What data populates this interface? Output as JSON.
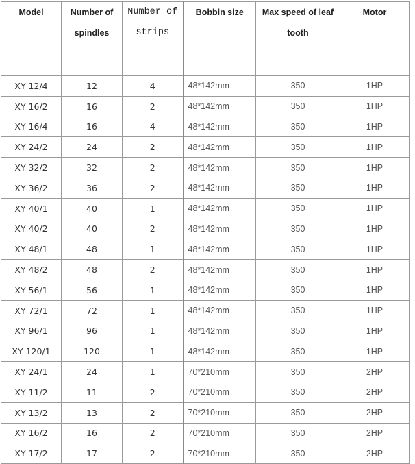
{
  "headers": [
    "Model",
    "Number of spindles",
    "Number of strips",
    "Bobbin size",
    "Max speed of leaf tooth",
    "Motor"
  ],
  "header_lines": [
    [
      "Model"
    ],
    [
      "Number of",
      "spindles"
    ],
    [
      "Number of",
      "strips"
    ],
    [
      "Bobbin size"
    ],
    [
      "Max speed of leaf",
      "tooth"
    ],
    [
      "Motor"
    ]
  ],
  "rows": [
    [
      "XY 12/4",
      "12",
      "4",
      "48*142mm",
      "350",
      "1HP"
    ],
    [
      "XY 16/2",
      "16",
      "2",
      "48*142mm",
      "350",
      "1HP"
    ],
    [
      "XY 16/4",
      "16",
      "4",
      "48*142mm",
      "350",
      "1HP"
    ],
    [
      "XY 24/2",
      "24",
      "2",
      "48*142mm",
      "350",
      "1HP"
    ],
    [
      "XY 32/2",
      "32",
      "2",
      "48*142mm",
      "350",
      "1HP"
    ],
    [
      "XY 36/2",
      "36",
      "2",
      "48*142mm",
      "350",
      "1HP"
    ],
    [
      "XY 40/1",
      "40",
      "1",
      "48*142mm",
      "350",
      "1HP"
    ],
    [
      "XY 40/2",
      "40",
      "2",
      "48*142mm",
      "350",
      "1HP"
    ],
    [
      "XY 48/1",
      "48",
      "1",
      "48*142mm",
      "350",
      "1HP"
    ],
    [
      "XY 48/2",
      "48",
      "2",
      "48*142mm",
      "350",
      "1HP"
    ],
    [
      "XY 56/1",
      "56",
      "1",
      "48*142mm",
      "350",
      "1HP"
    ],
    [
      "XY 72/1",
      "72",
      "1",
      "48*142mm",
      "350",
      "1HP"
    ],
    [
      "XY 96/1",
      "96",
      "1",
      "48*142mm",
      "350",
      "1HP"
    ],
    [
      "XY 120/1",
      "120",
      "1",
      "48*142mm",
      "350",
      "1HP"
    ],
    [
      "XY 24/1",
      "24",
      "1",
      "70*210mm",
      "350",
      "2HP"
    ],
    [
      "XY 11/2",
      "11",
      "2",
      "70*210mm",
      "350",
      "2HP"
    ],
    [
      "XY 13/2",
      "13",
      "2",
      "70*210mm",
      "350",
      "2HP"
    ],
    [
      "XY 16/2",
      "16",
      "2",
      "70*210mm",
      "350",
      "2HP"
    ],
    [
      "XY 17/2",
      "17",
      "2",
      "70*210mm",
      "350",
      "2HP"
    ]
  ]
}
